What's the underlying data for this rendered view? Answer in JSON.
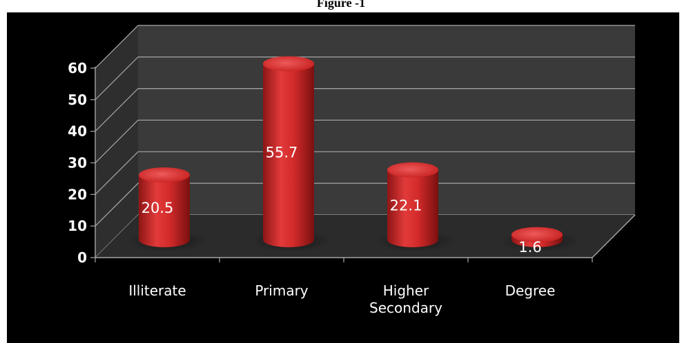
{
  "figure": {
    "caption": "Figure -1"
  },
  "colors": {
    "background": "#000000",
    "wall": "#3a3a3a",
    "floor": "#2b2b2b",
    "grid": "#a8a8a8",
    "bar": "#d42b2b",
    "bar_top": "#e04444"
  },
  "chart_data": {
    "type": "bar",
    "title": "",
    "xlabel": "",
    "ylabel": "",
    "categories": [
      "Illiterate",
      "Primary",
      "Higher Secondary",
      "Degree"
    ],
    "category_lines": [
      [
        "Illiterate"
      ],
      [
        "Primary"
      ],
      [
        "Higher",
        "Secondary"
      ],
      [
        "Degree"
      ]
    ],
    "values": [
      20.5,
      55.7,
      22.1,
      1.6
    ],
    "data_labels": [
      "20.5",
      "55.7",
      "22.1",
      "1.6"
    ],
    "ylim": [
      0,
      60
    ],
    "yticks": [
      0,
      10,
      20,
      30,
      40,
      50,
      60
    ],
    "grid": true,
    "style": "3d-cylinder"
  }
}
